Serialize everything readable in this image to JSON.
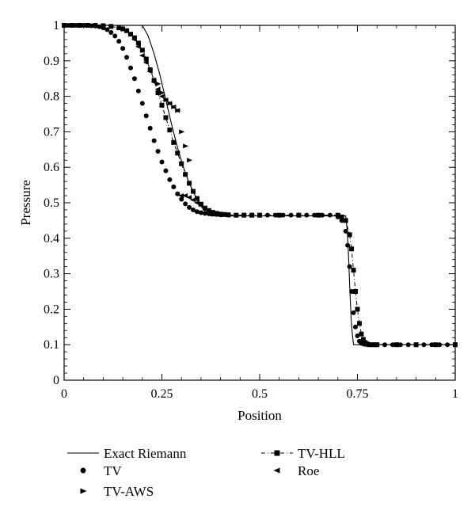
{
  "chart_data": {
    "type": "line",
    "xlabel": "Position",
    "ylabel": "Pressure",
    "xlim": [
      0,
      1
    ],
    "ylim": [
      0,
      1
    ],
    "grid": false,
    "legend_placement": "bottom",
    "x_ticks": [
      {
        "value": 0,
        "label": "0"
      },
      {
        "value": 0.25,
        "label": "0.25"
      },
      {
        "value": 0.5,
        "label": "0.5"
      },
      {
        "value": 0.75,
        "label": "0.75"
      },
      {
        "value": 1,
        "label": "1"
      }
    ],
    "y_ticks": [
      {
        "value": 0,
        "label": "0"
      },
      {
        "value": 0.1,
        "label": "0.1"
      },
      {
        "value": 0.2,
        "label": "0.2"
      },
      {
        "value": 0.3,
        "label": "0.3"
      },
      {
        "value": 0.4,
        "label": "0.4"
      },
      {
        "value": 0.5,
        "label": "0.5"
      },
      {
        "value": 0.6,
        "label": "0.6"
      },
      {
        "value": 0.7,
        "label": "0.7"
      },
      {
        "value": 0.8,
        "label": "0.8"
      },
      {
        "value": 0.9,
        "label": "0.9"
      },
      {
        "value": 1,
        "label": "1"
      }
    ],
    "series": [
      {
        "name": "Exact Riemann",
        "style": "solid-line",
        "color": "#000000",
        "x": [
          0,
          0.2,
          0.215,
          0.23,
          0.245,
          0.26,
          0.275,
          0.29,
          0.305,
          0.32,
          0.335,
          0.35,
          0.365,
          0.375,
          0.72,
          0.724,
          0.726,
          0.728,
          0.73,
          0.732,
          0.734,
          0.737,
          0.74,
          0.743,
          1
        ],
        "y": [
          1,
          1,
          0.97,
          0.92,
          0.86,
          0.79,
          0.72,
          0.655,
          0.6,
          0.555,
          0.52,
          0.49,
          0.47,
          0.463,
          0.463,
          0.42,
          0.38,
          0.33,
          0.27,
          0.22,
          0.17,
          0.13,
          0.1,
          0.1,
          0.1
        ]
      },
      {
        "name": "TV",
        "marker": "circle",
        "color": "#000000",
        "x": [
          0,
          0.01,
          0.02,
          0.03,
          0.04,
          0.05,
          0.06,
          0.07,
          0.08,
          0.09,
          0.1,
          0.11,
          0.12,
          0.13,
          0.14,
          0.15,
          0.16,
          0.17,
          0.18,
          0.19,
          0.2,
          0.21,
          0.22,
          0.23,
          0.24,
          0.25,
          0.26,
          0.27,
          0.28,
          0.29,
          0.3,
          0.31,
          0.32,
          0.33,
          0.34,
          0.35,
          0.36,
          0.37,
          0.38,
          0.39,
          0.4,
          0.42,
          0.44,
          0.46,
          0.48,
          0.5,
          0.52,
          0.54,
          0.56,
          0.58,
          0.6,
          0.62,
          0.64,
          0.66,
          0.68,
          0.7,
          0.71,
          0.72,
          0.725,
          0.73,
          0.735,
          0.74,
          0.745,
          0.75,
          0.755,
          0.76,
          0.765,
          0.77,
          0.78,
          0.79,
          0.8,
          0.82,
          0.84,
          0.86,
          0.88,
          0.9,
          0.92,
          0.94,
          0.96,
          0.98,
          1
        ],
        "y": [
          1,
          1,
          1,
          1,
          1,
          1,
          1,
          0.999,
          0.998,
          0.996,
          0.993,
          0.988,
          0.98,
          0.97,
          0.955,
          0.935,
          0.91,
          0.88,
          0.85,
          0.815,
          0.78,
          0.745,
          0.71,
          0.675,
          0.645,
          0.615,
          0.59,
          0.565,
          0.545,
          0.525,
          0.51,
          0.497,
          0.487,
          0.48,
          0.475,
          0.472,
          0.47,
          0.469,
          0.468,
          0.467,
          0.466,
          0.465,
          0.465,
          0.465,
          0.465,
          0.465,
          0.465,
          0.465,
          0.465,
          0.465,
          0.465,
          0.465,
          0.465,
          0.465,
          0.465,
          0.46,
          0.45,
          0.42,
          0.38,
          0.32,
          0.25,
          0.19,
          0.15,
          0.125,
          0.11,
          0.104,
          0.102,
          0.101,
          0.1,
          0.1,
          0.1,
          0.1,
          0.1,
          0.1,
          0.1,
          0.1,
          0.1,
          0.1,
          0.1,
          0.1,
          0.1
        ]
      },
      {
        "name": "TV-HLL",
        "marker": "square",
        "line": "dash-dot",
        "color": "#000000",
        "x": [
          0,
          0.02,
          0.04,
          0.06,
          0.08,
          0.1,
          0.12,
          0.14,
          0.15,
          0.16,
          0.17,
          0.18,
          0.19,
          0.2,
          0.21,
          0.22,
          0.23,
          0.24,
          0.25,
          0.26,
          0.27,
          0.28,
          0.29,
          0.3,
          0.31,
          0.32,
          0.33,
          0.34,
          0.35,
          0.36,
          0.37,
          0.38,
          0.39,
          0.4,
          0.41,
          0.42,
          0.44,
          0.46,
          0.48,
          0.5,
          0.55,
          0.6,
          0.65,
          0.7,
          0.71,
          0.72,
          0.73,
          0.735,
          0.74,
          0.745,
          0.75,
          0.755,
          0.76,
          0.765,
          0.77,
          0.775,
          0.78,
          0.79,
          0.8,
          0.85,
          0.9,
          0.95,
          1
        ],
        "y": [
          1,
          1,
          1,
          1,
          1,
          0.999,
          0.997,
          0.993,
          0.99,
          0.985,
          0.975,
          0.965,
          0.95,
          0.93,
          0.905,
          0.875,
          0.845,
          0.81,
          0.775,
          0.74,
          0.705,
          0.67,
          0.64,
          0.61,
          0.58,
          0.555,
          0.532,
          0.512,
          0.496,
          0.485,
          0.478,
          0.473,
          0.47,
          0.468,
          0.467,
          0.466,
          0.465,
          0.465,
          0.465,
          0.465,
          0.465,
          0.465,
          0.465,
          0.465,
          0.46,
          0.45,
          0.41,
          0.37,
          0.31,
          0.25,
          0.2,
          0.16,
          0.13,
          0.115,
          0.106,
          0.102,
          0.1,
          0.1,
          0.1,
          0.1,
          0.1,
          0.1,
          0.1
        ]
      },
      {
        "name": "TV-AWS",
        "marker": "triangle-right",
        "color": "#000000",
        "x": [
          0.24,
          0.25,
          0.26,
          0.27,
          0.28,
          0.29,
          0.3,
          0.31,
          0.32
        ],
        "y": [
          0.835,
          0.81,
          0.79,
          0.78,
          0.77,
          0.76,
          0.7,
          0.66,
          0.62
        ]
      },
      {
        "name": "Roe",
        "marker": "triangle-left",
        "color": "#000000",
        "x": [
          0.16,
          0.17,
          0.18,
          0.19,
          0.2,
          0.21,
          0.22,
          0.23,
          0.24,
          0.25,
          0.26,
          0.27,
          0.28,
          0.29,
          0.3,
          0.31,
          0.32,
          0.33,
          0.34,
          0.35,
          0.36,
          0.37,
          0.38,
          0.39,
          0.4
        ],
        "y": [
          0.985,
          0.975,
          0.96,
          0.94,
          0.915,
          0.895,
          0.87,
          0.84,
          0.82,
          0.8,
          0.79,
          0.78,
          0.77,
          0.76,
          0.52,
          0.52,
          0.515,
          0.508,
          0.5,
          0.492,
          0.485,
          0.477,
          0.472,
          0.468,
          0.466
        ]
      }
    ]
  }
}
